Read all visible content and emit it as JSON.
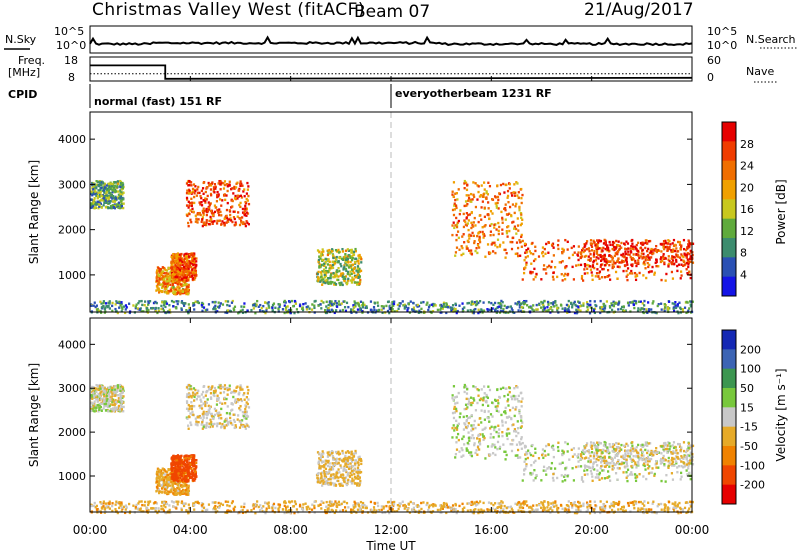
{
  "header": {
    "station": "Christmas Valley West (fitACF)",
    "beam": "Beam 07",
    "date": "21/Aug/2017"
  },
  "top_panel": {
    "left_label": "N.Sky",
    "right_label": "N.Search",
    "left_ticks": [
      "10^5",
      "10^0"
    ],
    "right_ticks": [
      "10^5",
      "10^0"
    ]
  },
  "freq_panel": {
    "left_label_1": "Freq.",
    "left_label_2": "[MHz]",
    "left_ticks": [
      "18",
      "8"
    ],
    "right_ticks": [
      "60",
      "0"
    ],
    "right_label": "Nave"
  },
  "cpid": {
    "label": "CPID",
    "modes": [
      {
        "text": "normal (fast) 151 RF"
      },
      {
        "text": "everyotherbeam 1231 RF"
      }
    ]
  },
  "power_panel": {
    "ylabel": "Slant Range [km]",
    "yticks": [
      "1000",
      "2000",
      "3000",
      "4000"
    ],
    "colorbar_label": "Power [dB]",
    "colorbar_ticks": [
      "4",
      "8",
      "12",
      "16",
      "20",
      "24",
      "28"
    ],
    "colors": [
      "#1414e6",
      "#2a50b4",
      "#3c8c6e",
      "#5faa3c",
      "#c8c81e",
      "#f0a000",
      "#f06e00",
      "#f03c00",
      "#e60000"
    ]
  },
  "velocity_panel": {
    "ylabel": "Slant Range [km]",
    "yticks": [
      "1000",
      "2000",
      "3000",
      "4000"
    ],
    "colorbar_label": "Velocity [m s⁻¹]",
    "colorbar_ticks": [
      "200",
      "100",
      "50",
      "15",
      "-15",
      "-50",
      "-100",
      "-200"
    ],
    "colors": [
      "#1428b4",
      "#3c64b4",
      "#3c9650",
      "#78c83c",
      "#c8c8c8",
      "#e6aa28",
      "#f08200",
      "#f04600",
      "#e60000"
    ]
  },
  "xaxis": {
    "ticks": [
      "00:00",
      "04:00",
      "08:00",
      "12:00",
      "16:00",
      "20:00",
      "00:00"
    ],
    "label": "Time UT"
  },
  "chart_data": {
    "type": "heatmap",
    "title": "Christmas Valley West (fitACF)",
    "xlabel": "Time UT",
    "ylabel": "Slant Range [km]",
    "x_range_hours": [
      0,
      24
    ],
    "y_range_km": [
      180,
      4600
    ],
    "noise_panel": {
      "series": [
        "N.Sky",
        "N.Search"
      ],
      "scale": "log"
    },
    "freq_panel": {
      "freq_mhz_before": 14.5,
      "freq_mhz_after": 11,
      "switch_hour": 3.0,
      "nave_scale": [
        0,
        60
      ]
    },
    "cpid_switch_hour": 12.0,
    "power_colorbar": {
      "label": "Power [dB]",
      "range": [
        0,
        30
      ]
    },
    "velocity_colorbar": {
      "label": "Velocity [m s⁻¹]",
      "range": [
        -200,
        200
      ]
    },
    "scatter_regions": [
      {
        "t0": 0.0,
        "t1": 1.3,
        "r0": 2500,
        "r1": 3100,
        "power": 10,
        "vel": 0
      },
      {
        "t0": 2.6,
        "t1": 3.9,
        "r0": 600,
        "r1": 1200,
        "power": 20,
        "vel": -40
      },
      {
        "t0": 3.2,
        "t1": 4.2,
        "r0": 900,
        "r1": 1500,
        "power": 24,
        "vel": -120
      },
      {
        "t0": 3.8,
        "t1": 6.3,
        "r0": 2100,
        "r1": 3100,
        "power": 26,
        "vel": -10
      },
      {
        "t0": 9.0,
        "t1": 10.8,
        "r0": 800,
        "r1": 1600,
        "power": 14,
        "vel": -20
      },
      {
        "t0": 14.4,
        "t1": 17.2,
        "r0": 1400,
        "r1": 3100,
        "power": 22,
        "vel": 5
      },
      {
        "t0": 17.2,
        "t1": 24.0,
        "r0": 900,
        "r1": 1800,
        "power": 24,
        "vel": 5
      },
      {
        "t0": 19.5,
        "t1": 24.0,
        "r0": 1200,
        "r1": 1800,
        "power": 28,
        "vel": -10
      },
      {
        "t0": 0.0,
        "t1": 24.0,
        "r0": 180,
        "r1": 450,
        "power": 8,
        "vel": -30
      }
    ]
  }
}
